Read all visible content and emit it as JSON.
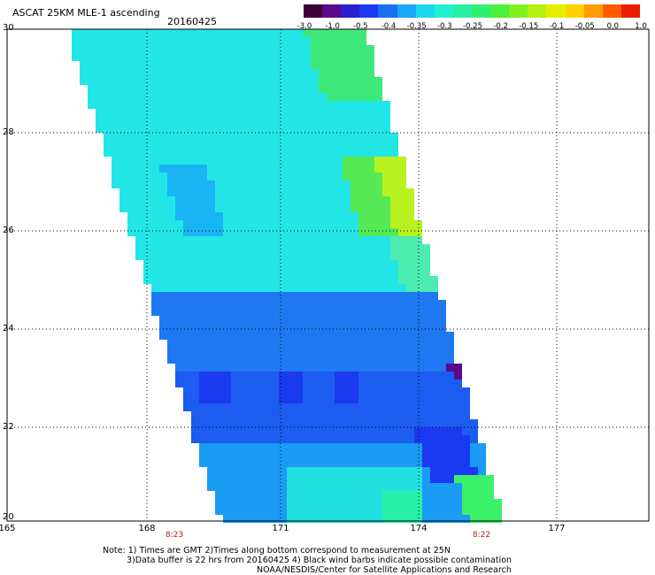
{
  "header": {
    "title": "ASCAT 25KM MLE-1 ascending",
    "date": "20160425"
  },
  "colorbar": {
    "colors": [
      "#3a0035",
      "#5a0a8a",
      "#2b1fd0",
      "#1b39f0",
      "#1870f5",
      "#1aa6f5",
      "#1ad7f2",
      "#22f0d0",
      "#28f0a0",
      "#31f070",
      "#4cf040",
      "#80f020",
      "#b4f010",
      "#e4f000",
      "#ffd200",
      "#ff9a00",
      "#ff5a00",
      "#e91d00"
    ],
    "labels": [
      "-3.0",
      "-1.0",
      "-0.5",
      "-0.4",
      "-0.35",
      "-0.3",
      "-0.25",
      "-0.2",
      "-0.15",
      "-0.1",
      "-0.05",
      "0.0",
      "1.0"
    ]
  },
  "axes": {
    "x_ticks": [
      "165",
      "168",
      "171",
      "174",
      "177"
    ],
    "y_ticks": [
      "30",
      "28",
      "26",
      "24",
      "22",
      "20"
    ]
  },
  "times": [
    "8:23",
    "8:22"
  ],
  "notes": [
    "Note: 1) Times are GMT 2)Times along bottom correspond to measurement at 25N",
    "3)Data buffer is 22 hrs from 20160425 4) Black wind barbs indicate possible contamination",
    "NOAA/NESDIS/Center for Satellite Applications and Research"
  ]
}
